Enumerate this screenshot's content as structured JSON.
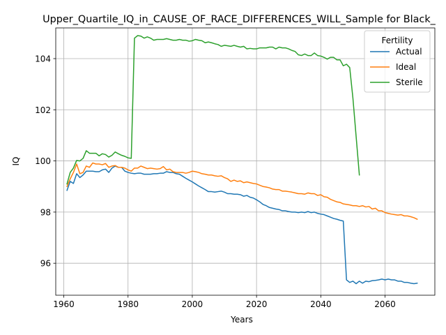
{
  "chart_data": {
    "type": "line",
    "title": "Upper_Quartile_IQ_in_CAUSE_OF_RACE_DIFFERENCES_WILL_Sample for Black_",
    "xlabel": "Years",
    "ylabel": "IQ",
    "xlim": [
      1957.5,
      2075.5
    ],
    "ylim": [
      94.75,
      105.2
    ],
    "xticks": [
      1960,
      1980,
      2000,
      2020,
      2040,
      2060
    ],
    "yticks": [
      96,
      98,
      100,
      102,
      104
    ],
    "grid": true,
    "legend": {
      "title": "Fertility",
      "placement": "top-right"
    },
    "colors": {
      "Actual": "#1f77b4",
      "Ideal": "#ff7f0e",
      "Sterile": "#2ca02c"
    },
    "series": [
      {
        "name": "Actual",
        "x": [
          1961,
          1962,
          1963,
          1964,
          1965,
          1966,
          1967,
          1968,
          1969,
          1970,
          1971,
          1972,
          1973,
          1974,
          1975,
          1976,
          1977,
          1978,
          1979,
          1980,
          1981,
          1982,
          1983,
          1984,
          1985,
          1986,
          1987,
          1988,
          1989,
          1990,
          1991,
          1992,
          1993,
          1994,
          1995,
          1996,
          1997,
          1998,
          1999,
          2000,
          2001,
          2002,
          2003,
          2004,
          2005,
          2006,
          2007,
          2008,
          2009,
          2010,
          2011,
          2012,
          2013,
          2014,
          2015,
          2016,
          2017,
          2018,
          2019,
          2020,
          2021,
          2022,
          2023,
          2024,
          2025,
          2026,
          2027,
          2028,
          2029,
          2030,
          2031,
          2032,
          2033,
          2034,
          2035,
          2036,
          2037,
          2038,
          2039,
          2040,
          2041,
          2042,
          2043,
          2044,
          2045,
          2046,
          2047,
          2048,
          2049,
          2050,
          2051,
          2052,
          2053,
          2054,
          2055,
          2056,
          2057,
          2058,
          2059,
          2060,
          2061,
          2062,
          2063,
          2064,
          2065,
          2066,
          2067,
          2068,
          2069,
          2070
        ],
        "values": [
          98.85,
          99.2,
          99.12,
          99.5,
          99.35,
          99.45,
          99.6,
          99.6,
          99.6,
          99.58,
          99.58,
          99.65,
          99.68,
          99.55,
          99.72,
          99.8,
          99.75,
          99.75,
          99.6,
          99.55,
          99.52,
          99.5,
          99.52,
          99.52,
          99.48,
          99.48,
          99.48,
          99.5,
          99.5,
          99.52,
          99.52,
          99.58,
          99.55,
          99.55,
          99.5,
          99.48,
          99.4,
          99.32,
          99.25,
          99.18,
          99.1,
          99.02,
          98.95,
          98.88,
          98.8,
          98.8,
          98.78,
          98.8,
          98.82,
          98.78,
          98.72,
          98.72,
          98.7,
          98.7,
          98.68,
          98.62,
          98.65,
          98.58,
          98.55,
          98.48,
          98.4,
          98.3,
          98.25,
          98.18,
          98.15,
          98.12,
          98.1,
          98.05,
          98.05,
          98.02,
          98.0,
          98.0,
          97.98,
          98.0,
          97.98,
          98.02,
          97.98,
          98.0,
          97.95,
          97.92,
          97.9,
          97.85,
          97.8,
          97.75,
          97.72,
          97.68,
          97.65,
          95.35,
          95.25,
          95.3,
          95.2,
          95.3,
          95.22,
          95.3,
          95.28,
          95.32,
          95.33,
          95.35,
          95.38,
          95.35,
          95.38,
          95.35,
          95.35,
          95.3,
          95.3,
          95.25,
          95.25,
          95.22,
          95.2,
          95.22
        ]
      },
      {
        "name": "Ideal",
        "x": [
          1961,
          1962,
          1963,
          1964,
          1965,
          1966,
          1967,
          1968,
          1969,
          1970,
          1971,
          1972,
          1973,
          1974,
          1975,
          1976,
          1977,
          1978,
          1979,
          1980,
          1981,
          1982,
          1983,
          1984,
          1985,
          1986,
          1987,
          1988,
          1989,
          1990,
          1991,
          1992,
          1993,
          1994,
          1995,
          1996,
          1997,
          1998,
          1999,
          2000,
          2001,
          2002,
          2003,
          2004,
          2005,
          2006,
          2007,
          2008,
          2009,
          2010,
          2011,
          2012,
          2013,
          2014,
          2015,
          2016,
          2017,
          2018,
          2019,
          2020,
          2021,
          2022,
          2023,
          2024,
          2025,
          2026,
          2027,
          2028,
          2029,
          2030,
          2031,
          2032,
          2033,
          2034,
          2035,
          2036,
          2037,
          2038,
          2039,
          2040,
          2041,
          2042,
          2043,
          2044,
          2045,
          2046,
          2047,
          2048,
          2049,
          2050,
          2051,
          2052,
          2053,
          2054,
          2055,
          2056,
          2057,
          2058,
          2059,
          2060,
          2061,
          2062,
          2063,
          2064,
          2065,
          2066,
          2067,
          2068,
          2069,
          2070
        ],
        "values": [
          99.0,
          99.3,
          99.55,
          99.88,
          99.5,
          99.55,
          99.8,
          99.75,
          99.92,
          99.88,
          99.88,
          99.85,
          99.9,
          99.75,
          99.8,
          99.82,
          99.75,
          99.75,
          99.72,
          99.65,
          99.6,
          99.72,
          99.72,
          99.8,
          99.75,
          99.7,
          99.72,
          99.7,
          99.68,
          99.7,
          99.78,
          99.65,
          99.68,
          99.58,
          99.55,
          99.55,
          99.55,
          99.52,
          99.55,
          99.6,
          99.58,
          99.55,
          99.5,
          99.48,
          99.45,
          99.45,
          99.42,
          99.4,
          99.42,
          99.35,
          99.3,
          99.2,
          99.25,
          99.2,
          99.22,
          99.15,
          99.18,
          99.15,
          99.12,
          99.1,
          99.05,
          99.0,
          98.98,
          98.95,
          98.9,
          98.88,
          98.88,
          98.82,
          98.82,
          98.8,
          98.78,
          98.75,
          98.72,
          98.72,
          98.7,
          98.75,
          98.72,
          98.72,
          98.65,
          98.68,
          98.6,
          98.58,
          98.5,
          98.45,
          98.4,
          98.38,
          98.32,
          98.3,
          98.28,
          98.25,
          98.25,
          98.22,
          98.25,
          98.2,
          98.22,
          98.12,
          98.15,
          98.05,
          98.05,
          97.98,
          97.95,
          97.92,
          97.9,
          97.88,
          97.9,
          97.85,
          97.85,
          97.82,
          97.78,
          97.72
        ]
      },
      {
        "name": "Sterile",
        "x": [
          1961,
          1962,
          1963,
          1964,
          1965,
          1966,
          1967,
          1968,
          1969,
          1970,
          1971,
          1972,
          1973,
          1974,
          1975,
          1976,
          1977,
          1978,
          1979,
          1980,
          1981,
          1982,
          1983,
          1984,
          1985,
          1986,
          1987,
          1988,
          1989,
          1990,
          1991,
          1992,
          1993,
          1994,
          1995,
          1996,
          1997,
          1998,
          1999,
          2000,
          2001,
          2002,
          2003,
          2004,
          2005,
          2006,
          2007,
          2008,
          2009,
          2010,
          2011,
          2012,
          2013,
          2014,
          2015,
          2016,
          2017,
          2018,
          2019,
          2020,
          2021,
          2022,
          2023,
          2024,
          2025,
          2026,
          2027,
          2028,
          2029,
          2030,
          2031,
          2032,
          2033,
          2034,
          2035,
          2036,
          2037,
          2038,
          2039,
          2040,
          2041,
          2042,
          2043,
          2044,
          2045,
          2046,
          2047,
          2048,
          2049,
          2050,
          2051,
          2052
        ],
        "values": [
          99.1,
          99.55,
          99.72,
          100.02,
          100.0,
          100.1,
          100.4,
          100.3,
          100.3,
          100.3,
          100.2,
          100.28,
          100.25,
          100.15,
          100.22,
          100.35,
          100.28,
          100.22,
          100.18,
          100.12,
          100.1,
          104.8,
          104.9,
          104.88,
          104.8,
          104.85,
          104.8,
          104.72,
          104.75,
          104.75,
          104.75,
          104.78,
          104.75,
          104.72,
          104.72,
          104.75,
          104.72,
          104.72,
          104.68,
          104.7,
          104.75,
          104.72,
          104.7,
          104.62,
          104.65,
          104.62,
          104.58,
          104.55,
          104.48,
          104.52,
          104.5,
          104.48,
          104.52,
          104.48,
          104.45,
          104.48,
          104.38,
          104.4,
          104.38,
          104.38,
          104.42,
          104.42,
          104.42,
          104.45,
          104.45,
          104.38,
          104.45,
          104.42,
          104.42,
          104.38,
          104.32,
          104.28,
          104.15,
          104.12,
          104.18,
          104.12,
          104.12,
          104.22,
          104.12,
          104.1,
          104.05,
          103.98,
          104.05,
          104.05,
          103.95,
          103.95,
          103.72,
          103.78,
          103.65,
          102.45,
          100.95,
          99.45
        ]
      }
    ]
  }
}
